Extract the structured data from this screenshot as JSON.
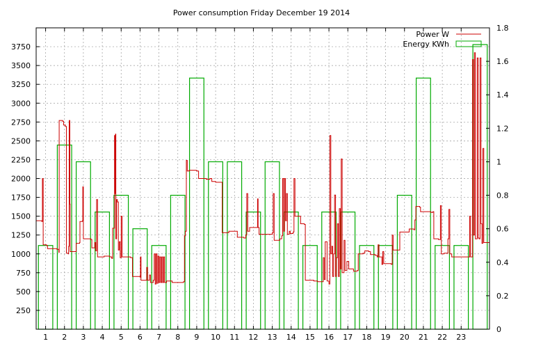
{
  "chart_data": {
    "type": "line+bar",
    "title": "Power consumption Friday December 19 2014",
    "x_ticks": [
      "1",
      "2",
      "3",
      "4",
      "5",
      "6",
      "7",
      "8",
      "9",
      "10",
      "11",
      "12",
      "13",
      "14",
      "15",
      "16",
      "17",
      "18",
      "19",
      "20",
      "21",
      "22",
      "23"
    ],
    "xlim": [
      0,
      24
    ],
    "y_left_ticks": [
      250,
      500,
      750,
      1000,
      1250,
      1500,
      1750,
      2000,
      2250,
      2500,
      2750,
      3000,
      3250,
      3500,
      3750
    ],
    "ylim_left": [
      0,
      4000
    ],
    "y_right_ticks": [
      0,
      0.2,
      0.4,
      0.6,
      0.8,
      1,
      1.2,
      1.4,
      1.6,
      1.8
    ],
    "ylim_right": [
      0,
      1.8
    ],
    "grid": true,
    "legend_position": "top-right",
    "colors": {
      "power": "#cc0000",
      "energy": "#00aa00",
      "grid": "#999999"
    },
    "series": [
      {
        "name": "Power W",
        "axis": "left",
        "style": "line",
        "points": [
          [
            0,
            1440
          ],
          [
            0.3,
            1430
          ],
          [
            0.33,
            2000
          ],
          [
            0.37,
            1120
          ],
          [
            0.55,
            1110
          ],
          [
            0.6,
            1070
          ],
          [
            1.1,
            1060
          ],
          [
            1.2,
            1020
          ],
          [
            1.22,
            2770
          ],
          [
            1.4,
            2760
          ],
          [
            1.45,
            2710
          ],
          [
            1.55,
            2690
          ],
          [
            1.6,
            1010
          ],
          [
            1.7,
            1000
          ],
          [
            1.72,
            1100
          ],
          [
            1.75,
            2770
          ],
          [
            1.78,
            1660
          ],
          [
            1.8,
            1030
          ],
          [
            2.1,
            1030
          ],
          [
            2.12,
            1140
          ],
          [
            2.3,
            1150
          ],
          [
            2.32,
            1430
          ],
          [
            2.45,
            1440
          ],
          [
            2.47,
            1890
          ],
          [
            2.5,
            1200
          ],
          [
            2.9,
            1190
          ],
          [
            2.95,
            1080
          ],
          [
            3.1,
            1150
          ],
          [
            3.15,
            1040
          ],
          [
            3.2,
            1720
          ],
          [
            3.25,
            960
          ],
          [
            3.5,
            960
          ],
          [
            3.6,
            970
          ],
          [
            3.9,
            960
          ],
          [
            4.0,
            940
          ],
          [
            4.05,
            1340
          ],
          [
            4.15,
            2570
          ],
          [
            4.18,
            1800
          ],
          [
            4.2,
            2590
          ],
          [
            4.22,
            1200
          ],
          [
            4.26,
            1720
          ],
          [
            4.3,
            1690
          ],
          [
            4.35,
            1050
          ],
          [
            4.4,
            1160
          ],
          [
            4.45,
            950
          ],
          [
            4.5,
            1500
          ],
          [
            4.55,
            960
          ],
          [
            5.0,
            950
          ],
          [
            5.1,
            700
          ],
          [
            5.5,
            690
          ],
          [
            5.52,
            960
          ],
          [
            5.55,
            650
          ],
          [
            5.8,
            650
          ],
          [
            5.85,
            820
          ],
          [
            5.9,
            650
          ],
          [
            6.0,
            720
          ],
          [
            6.05,
            620
          ],
          [
            6.2,
            650
          ],
          [
            6.25,
            1000
          ],
          [
            6.3,
            600
          ],
          [
            6.35,
            1000
          ],
          [
            6.4,
            610
          ],
          [
            6.45,
            970
          ],
          [
            6.5,
            620
          ],
          [
            6.55,
            960
          ],
          [
            6.6,
            620
          ],
          [
            6.65,
            960
          ],
          [
            6.7,
            620
          ],
          [
            6.75,
            960
          ],
          [
            6.8,
            620
          ],
          [
            6.9,
            640
          ],
          [
            7.2,
            620
          ],
          [
            7.8,
            630
          ],
          [
            7.85,
            1240
          ],
          [
            7.9,
            1300
          ],
          [
            7.95,
            2240
          ],
          [
            8.0,
            2100
          ],
          [
            8.1,
            2110
          ],
          [
            8.5,
            2100
          ],
          [
            8.6,
            2000
          ],
          [
            9.0,
            1990
          ],
          [
            9.2,
            2000
          ],
          [
            9.3,
            1960
          ],
          [
            9.5,
            1950
          ],
          [
            9.7,
            1950
          ],
          [
            9.8,
            1950
          ],
          [
            9.85,
            1280
          ],
          [
            10.2,
            1300
          ],
          [
            10.6,
            1300
          ],
          [
            10.65,
            1220
          ],
          [
            11.0,
            1210
          ],
          [
            11.1,
            1250
          ],
          [
            11.15,
            1800
          ],
          [
            11.2,
            1300
          ],
          [
            11.3,
            1350
          ],
          [
            11.7,
            1350
          ],
          [
            11.72,
            1730
          ],
          [
            11.75,
            1350
          ],
          [
            11.8,
            1260
          ],
          [
            12.4,
            1260
          ],
          [
            12.5,
            1280
          ],
          [
            12.55,
            1800
          ],
          [
            12.6,
            1180
          ],
          [
            12.85,
            1180
          ],
          [
            12.9,
            1200
          ],
          [
            13.0,
            1240
          ],
          [
            13.05,
            2000
          ],
          [
            13.1,
            1300
          ],
          [
            13.15,
            2000
          ],
          [
            13.2,
            1440
          ],
          [
            13.25,
            1800
          ],
          [
            13.3,
            1260
          ],
          [
            13.4,
            1300
          ],
          [
            13.45,
            1270
          ],
          [
            13.6,
            1290
          ],
          [
            13.65,
            2000
          ],
          [
            13.7,
            1500
          ],
          [
            13.85,
            1500
          ],
          [
            14.0,
            1400
          ],
          [
            14.2,
            1390
          ],
          [
            14.25,
            650
          ],
          [
            14.4,
            650
          ],
          [
            14.7,
            640
          ],
          [
            14.9,
            630
          ],
          [
            15.15,
            630
          ],
          [
            15.2,
            950
          ],
          [
            15.25,
            660
          ],
          [
            15.3,
            1160
          ],
          [
            15.4,
            640
          ],
          [
            15.5,
            600
          ],
          [
            15.55,
            2570
          ],
          [
            15.6,
            1000
          ],
          [
            15.65,
            1100
          ],
          [
            15.7,
            700
          ],
          [
            15.75,
            1000
          ],
          [
            15.8,
            1780
          ],
          [
            15.85,
            700
          ],
          [
            15.9,
            950
          ],
          [
            15.95,
            1400
          ],
          [
            16.0,
            700
          ],
          [
            16.05,
            1600
          ],
          [
            16.1,
            800
          ],
          [
            16.15,
            2260
          ],
          [
            16.2,
            750
          ],
          [
            16.3,
            1180
          ],
          [
            16.35,
            780
          ],
          [
            16.45,
            900
          ],
          [
            16.55,
            800
          ],
          [
            16.75,
            800
          ],
          [
            16.8,
            770
          ],
          [
            17.0,
            780
          ],
          [
            17.05,
            1000
          ],
          [
            17.3,
            1010
          ],
          [
            17.4,
            1040
          ],
          [
            17.6,
            1030
          ],
          [
            17.7,
            990
          ],
          [
            17.95,
            980
          ],
          [
            18.05,
            960
          ],
          [
            18.1,
            1120
          ],
          [
            18.15,
            960
          ],
          [
            18.3,
            860
          ],
          [
            18.35,
            1030
          ],
          [
            18.4,
            870
          ],
          [
            18.8,
            860
          ],
          [
            18.85,
            1250
          ],
          [
            18.9,
            1050
          ],
          [
            19.2,
            1050
          ],
          [
            19.25,
            1290
          ],
          [
            19.6,
            1290
          ],
          [
            19.7,
            1290
          ],
          [
            19.75,
            1330
          ],
          [
            20.0,
            1320
          ],
          [
            20.05,
            1450
          ],
          [
            20.1,
            1630
          ],
          [
            20.3,
            1620
          ],
          [
            20.35,
            1560
          ],
          [
            20.9,
            1550
          ],
          [
            21.0,
            1560
          ],
          [
            21.05,
            1200
          ],
          [
            21.3,
            1190
          ],
          [
            21.4,
            1640
          ],
          [
            21.45,
            1000
          ],
          [
            21.6,
            1010
          ],
          [
            21.8,
            1200
          ],
          [
            21.85,
            1590
          ],
          [
            21.9,
            1000
          ],
          [
            22.0,
            960
          ],
          [
            22.5,
            960
          ],
          [
            22.9,
            960
          ],
          [
            22.95,
            1500
          ],
          [
            23.0,
            960
          ],
          [
            23.1,
            3580
          ],
          [
            23.15,
            1250
          ],
          [
            23.2,
            3670
          ],
          [
            23.25,
            1200
          ],
          [
            23.35,
            3600
          ],
          [
            23.4,
            1210
          ],
          [
            23.45,
            1200
          ],
          [
            23.5,
            3600
          ],
          [
            23.55,
            1400
          ],
          [
            23.6,
            1140
          ],
          [
            23.65,
            2400
          ],
          [
            23.7,
            1150
          ],
          [
            23.8,
            1150
          ],
          [
            24.0,
            2100
          ]
        ]
      },
      {
        "name": "Energy KWh",
        "axis": "right",
        "style": "bars",
        "hours": [
          0,
          1,
          2,
          3,
          4,
          5,
          6,
          7,
          8,
          9,
          10,
          11,
          12,
          13,
          14,
          15,
          16,
          17,
          18,
          19,
          20,
          21,
          22,
          23
        ],
        "values": [
          0.5,
          1.1,
          1.0,
          0.7,
          0.8,
          0.6,
          0.5,
          0.8,
          1.5,
          1.0,
          1.0,
          0.7,
          1.0,
          0.7,
          0.5,
          0.7,
          0.7,
          0.5,
          0.5,
          0.8,
          1.5,
          0.5,
          0.5,
          1.7
        ]
      }
    ]
  }
}
